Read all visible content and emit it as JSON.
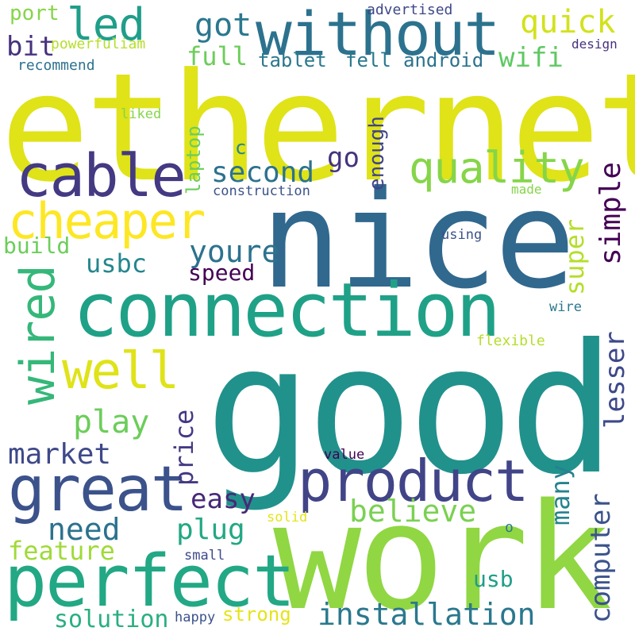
{
  "words": [
    {
      "text": "ethernet",
      "color": "#dfe318",
      "vertical": false
    },
    {
      "text": "nice",
      "color": "#31688e",
      "vertical": false
    },
    {
      "text": "good",
      "color": "#21918c",
      "vertical": false
    },
    {
      "text": "work",
      "color": "#90d743",
      "vertical": false
    },
    {
      "text": "connection",
      "color": "#1fa187",
      "vertical": false
    },
    {
      "text": "without",
      "color": "#2c728e",
      "vertical": false
    },
    {
      "text": "perfect",
      "color": "#22a884",
      "vertical": false
    },
    {
      "text": "great",
      "color": "#3b528b",
      "vertical": false
    },
    {
      "text": "product",
      "color": "#414487",
      "vertical": false
    },
    {
      "text": "cable",
      "color": "#443983",
      "vertical": false
    },
    {
      "text": "cheaper",
      "color": "#fde725",
      "vertical": false
    },
    {
      "text": "well",
      "color": "#dfe318",
      "vertical": false
    },
    {
      "text": "wired",
      "color": "#35b779",
      "vertical": true
    },
    {
      "text": "quality",
      "color": "#86d549",
      "vertical": false
    },
    {
      "text": "installation",
      "color": "#2a788e",
      "vertical": false
    },
    {
      "text": "led",
      "color": "#1f9e89",
      "vertical": false
    },
    {
      "text": "quick",
      "color": "#d2e21b",
      "vertical": false
    },
    {
      "text": "got",
      "color": "#2a788e",
      "vertical": false
    },
    {
      "text": "second",
      "color": "#2c728e",
      "vertical": false
    },
    {
      "text": "youre",
      "color": "#2c728e",
      "vertical": false
    },
    {
      "text": "believe",
      "color": "#7ad151",
      "vertical": false
    },
    {
      "text": "play",
      "color": "#6ccd5a",
      "vertical": false
    },
    {
      "text": "market",
      "color": "#3e4989",
      "vertical": false
    },
    {
      "text": "need",
      "color": "#2c728e",
      "vertical": false
    },
    {
      "text": "plug",
      "color": "#22a884",
      "vertical": false
    },
    {
      "text": "easy",
      "color": "#482878",
      "vertical": false
    },
    {
      "text": "feature",
      "color": "#a0da39",
      "vertical": false
    },
    {
      "text": "solution",
      "color": "#29af7f",
      "vertical": false
    },
    {
      "text": "strong",
      "color": "#e5e419",
      "vertical": false
    },
    {
      "text": "usbc",
      "color": "#24868e",
      "vertical": false
    },
    {
      "text": "full",
      "color": "#6ccd5a",
      "vertical": false
    },
    {
      "text": "bit",
      "color": "#46327e",
      "vertical": false
    },
    {
      "text": "go",
      "color": "#46337e",
      "vertical": false
    },
    {
      "text": "wifi",
      "color": "#5ec962",
      "vertical": false
    },
    {
      "text": "speed",
      "color": "#440154",
      "vertical": false
    },
    {
      "text": "build",
      "color": "#6ccd5a",
      "vertical": false
    },
    {
      "text": "port",
      "color": "#86d549",
      "vertical": false
    },
    {
      "text": "tablet",
      "color": "#2a788e",
      "vertical": false
    },
    {
      "text": "fell",
      "color": "#2a788e",
      "vertical": false
    },
    {
      "text": "android",
      "color": "#2c728e",
      "vertical": false
    },
    {
      "text": "simple",
      "color": "#440154",
      "vertical": true
    },
    {
      "text": "super",
      "color": "#b5de2b",
      "vertical": true
    },
    {
      "text": "lesser",
      "color": "#3e4989",
      "vertical": true
    },
    {
      "text": "many",
      "color": "#26828e",
      "vertical": true
    },
    {
      "text": "computer",
      "color": "#3b528b",
      "vertical": true
    },
    {
      "text": "price",
      "color": "#443983",
      "vertical": true
    },
    {
      "text": "enough",
      "color": "#414487",
      "vertical": true
    },
    {
      "text": "laptop",
      "color": "#6ccd5a",
      "vertical": true
    },
    {
      "text": "usb",
      "color": "#1f9e89",
      "vertical": false
    },
    {
      "text": "c",
      "color": "#25848e",
      "vertical": false
    },
    {
      "text": "advertised",
      "color": "#3e4989",
      "vertical": false
    },
    {
      "text": "powerfuliam",
      "color": "#b5de2b",
      "vertical": false
    },
    {
      "text": "recommend",
      "color": "#2c728e",
      "vertical": false
    },
    {
      "text": "design",
      "color": "#46327e",
      "vertical": false
    },
    {
      "text": "liked",
      "color": "#86d549",
      "vertical": false
    },
    {
      "text": "construction",
      "color": "#3b528b",
      "vertical": false
    },
    {
      "text": "made",
      "color": "#86d549",
      "vertical": false
    },
    {
      "text": "using",
      "color": "#3b528b",
      "vertical": false
    },
    {
      "text": "wire",
      "color": "#2a788e",
      "vertical": false
    },
    {
      "text": "flexible",
      "color": "#b5de2b",
      "vertical": false
    },
    {
      "text": "value",
      "color": "#440154",
      "vertical": false
    },
    {
      "text": "solid",
      "color": "#e5e419",
      "vertical": false
    },
    {
      "text": "small",
      "color": "#3e4989",
      "vertical": false
    },
    {
      "text": "o",
      "color": "#2a788e",
      "vertical": false
    },
    {
      "text": "happy",
      "color": "#3b528b",
      "vertical": false
    }
  ]
}
